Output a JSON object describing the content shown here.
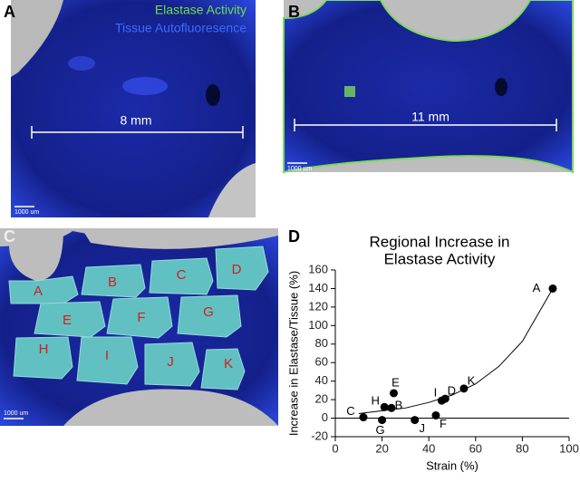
{
  "figure": {
    "panel_labels": [
      "A",
      "B",
      "C",
      "D"
    ],
    "legend": {
      "green": "Elastase Activity",
      "blue": "Tissue Autofluoresence"
    },
    "measurements": [
      "8 mm",
      "11 mm"
    ],
    "scale_bars": [
      "1000 um",
      "1000 um",
      "1000 um"
    ],
    "regions": [
      "A",
      "B",
      "C",
      "D",
      "E",
      "F",
      "G",
      "H",
      "I",
      "J",
      "K"
    ]
  },
  "chart_data": {
    "type": "scatter",
    "title": [
      "Regional Increase in",
      "Elastase Activity"
    ],
    "x_label": "Strain (%)",
    "y_label": "Increase in Elastase/Tissue (%)",
    "point_labels": [
      "A",
      "K",
      "D",
      "I",
      "E",
      "H",
      "B",
      "C",
      "G",
      "J",
      "F"
    ],
    "x": [
      93,
      55,
      47,
      45.5,
      25,
      21,
      24,
      12,
      20,
      34,
      43
    ],
    "values": [
      140,
      32,
      21,
      19,
      27,
      12,
      11,
      1,
      -2,
      -2,
      3
    ],
    "color": "#000000",
    "trendline": {
      "x": [
        10,
        20,
        30,
        40,
        50,
        60,
        70,
        80,
        93
      ],
      "y": [
        5,
        8,
        11,
        17,
        25,
        37,
        56,
        83,
        140
      ]
    },
    "xlim": [
      0,
      100
    ],
    "xticks": [
      0,
      20,
      40,
      60,
      80,
      100
    ],
    "ylim": [
      -20,
      160
    ],
    "yticks": [
      -20,
      0,
      20,
      40,
      60,
      80,
      100,
      120,
      140,
      160
    ]
  }
}
